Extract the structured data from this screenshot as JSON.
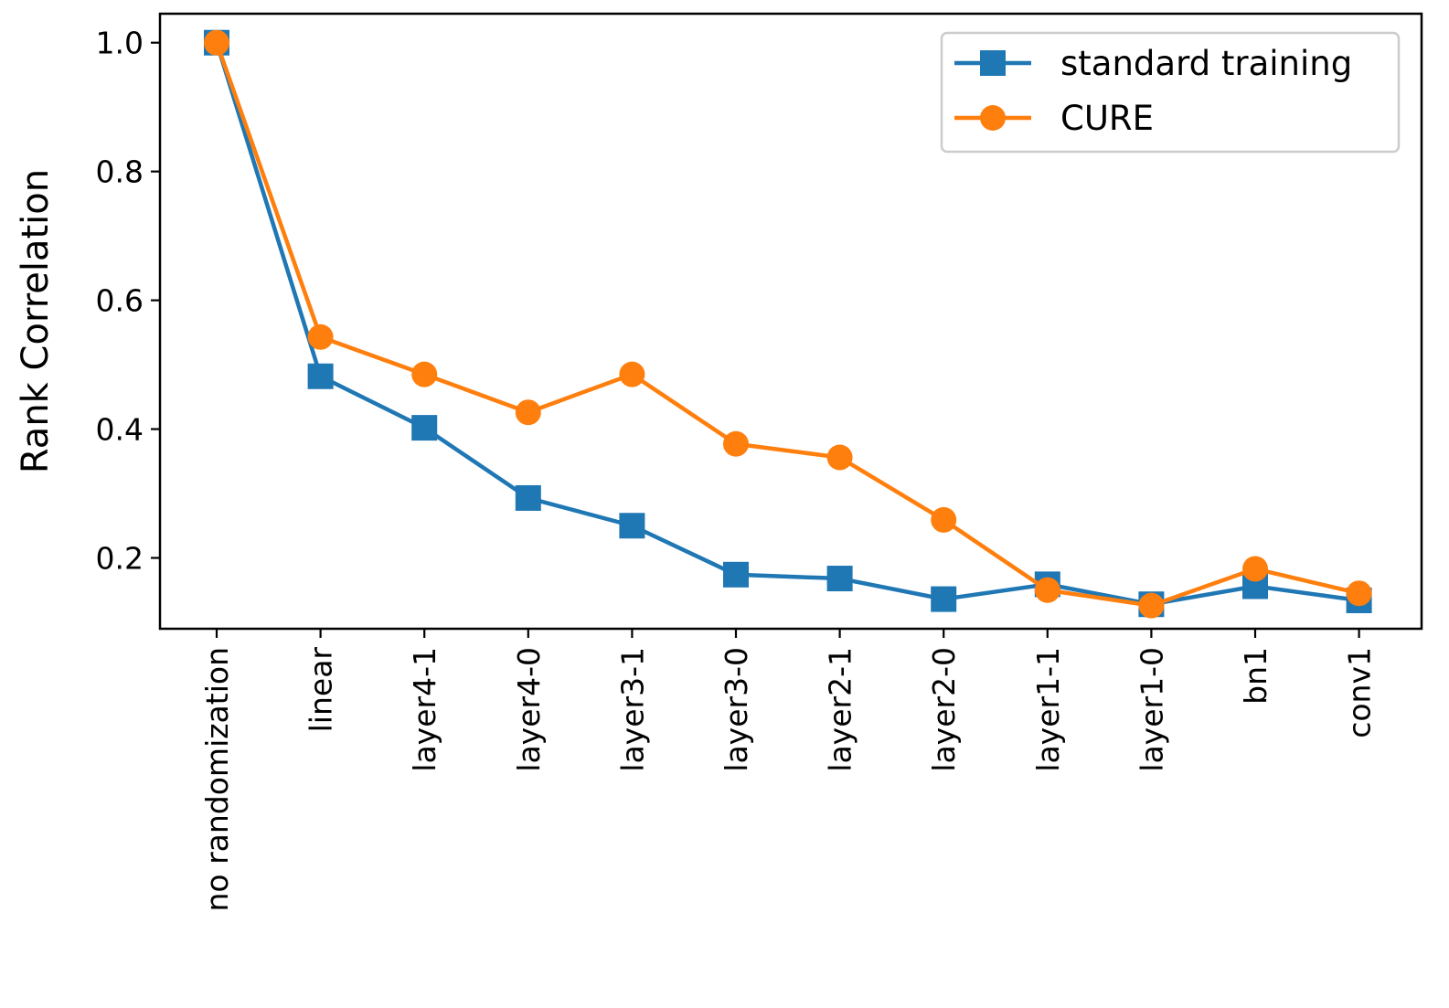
{
  "chart_data": {
    "type": "line",
    "title": "",
    "xlabel": "",
    "ylabel": "Rank Correlation",
    "categories": [
      "no randomization",
      "linear",
      "layer4-1",
      "layer4-0",
      "layer3-1",
      "layer3-0",
      "layer2-1",
      "layer2-0",
      "layer1-1",
      "layer1-0",
      "bn1",
      "conv1"
    ],
    "ylim": [
      0.09,
      1.045
    ],
    "yticks": [
      "0.2",
      "0.4",
      "0.6",
      "0.8",
      "1.0"
    ],
    "grid": false,
    "legend_position": "top-right",
    "series": [
      {
        "name": "standard training",
        "color": "#1f77b4",
        "marker": "square",
        "values": [
          1.0,
          0.482,
          0.402,
          0.293,
          0.25,
          0.174,
          0.168,
          0.136,
          0.159,
          0.128,
          0.156,
          0.134
        ]
      },
      {
        "name": "CURE",
        "color": "#ff7f0e",
        "marker": "circle",
        "values": [
          1.0,
          0.543,
          0.485,
          0.426,
          0.485,
          0.377,
          0.356,
          0.259,
          0.15,
          0.126,
          0.183,
          0.145
        ]
      }
    ]
  }
}
